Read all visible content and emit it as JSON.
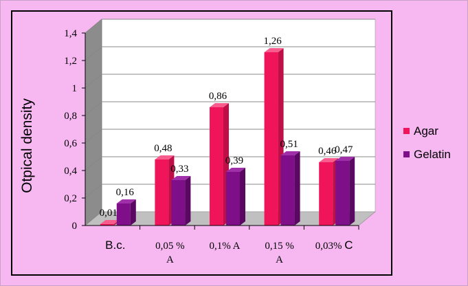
{
  "chart_data": {
    "type": "bar",
    "categories": [
      "B.c.",
      "0,05 % A",
      "0,1% A",
      "0,15 % A",
      "0,03% C"
    ],
    "category_lines": [
      [
        "B.c."
      ],
      [
        "0,05 %",
        "A"
      ],
      [
        "0,1% A"
      ],
      [
        "0,15 %",
        "A"
      ],
      [
        "0,03% C"
      ]
    ],
    "series": [
      {
        "name": "Agar",
        "color": "#f0145a",
        "side_color": "#c00e48",
        "top_color": "#f85c8c",
        "values": [
          0.01,
          0.48,
          0.86,
          1.26,
          0.46
        ],
        "labels": [
          "0,01",
          "0,48",
          "0,86",
          "1,26",
          "0,46"
        ]
      },
      {
        "name": "Gelatin",
        "color": "#7e0f88",
        "side_color": "#5a0862",
        "top_color": "#a030aa",
        "values": [
          0.16,
          0.33,
          0.39,
          0.51,
          0.47
        ],
        "labels": [
          "0,16",
          "0,33",
          "0,39",
          "0,51",
          "0,47"
        ]
      }
    ],
    "ylabel": "Otpical density",
    "xlabel": "",
    "ylim": [
      0,
      1.4
    ],
    "yticks": [
      0,
      0.2,
      0.4,
      0.6,
      0.8,
      1,
      1.2,
      1.4
    ],
    "ytick_labels": [
      "0",
      "0,2",
      "0,4",
      "0,6",
      "0,8",
      "1",
      "1,2",
      "1,4"
    ],
    "grid": true,
    "legend_position": "right",
    "style_3d": true,
    "wall_color": "#ffffff",
    "floor_color": "#c0c0c0"
  }
}
